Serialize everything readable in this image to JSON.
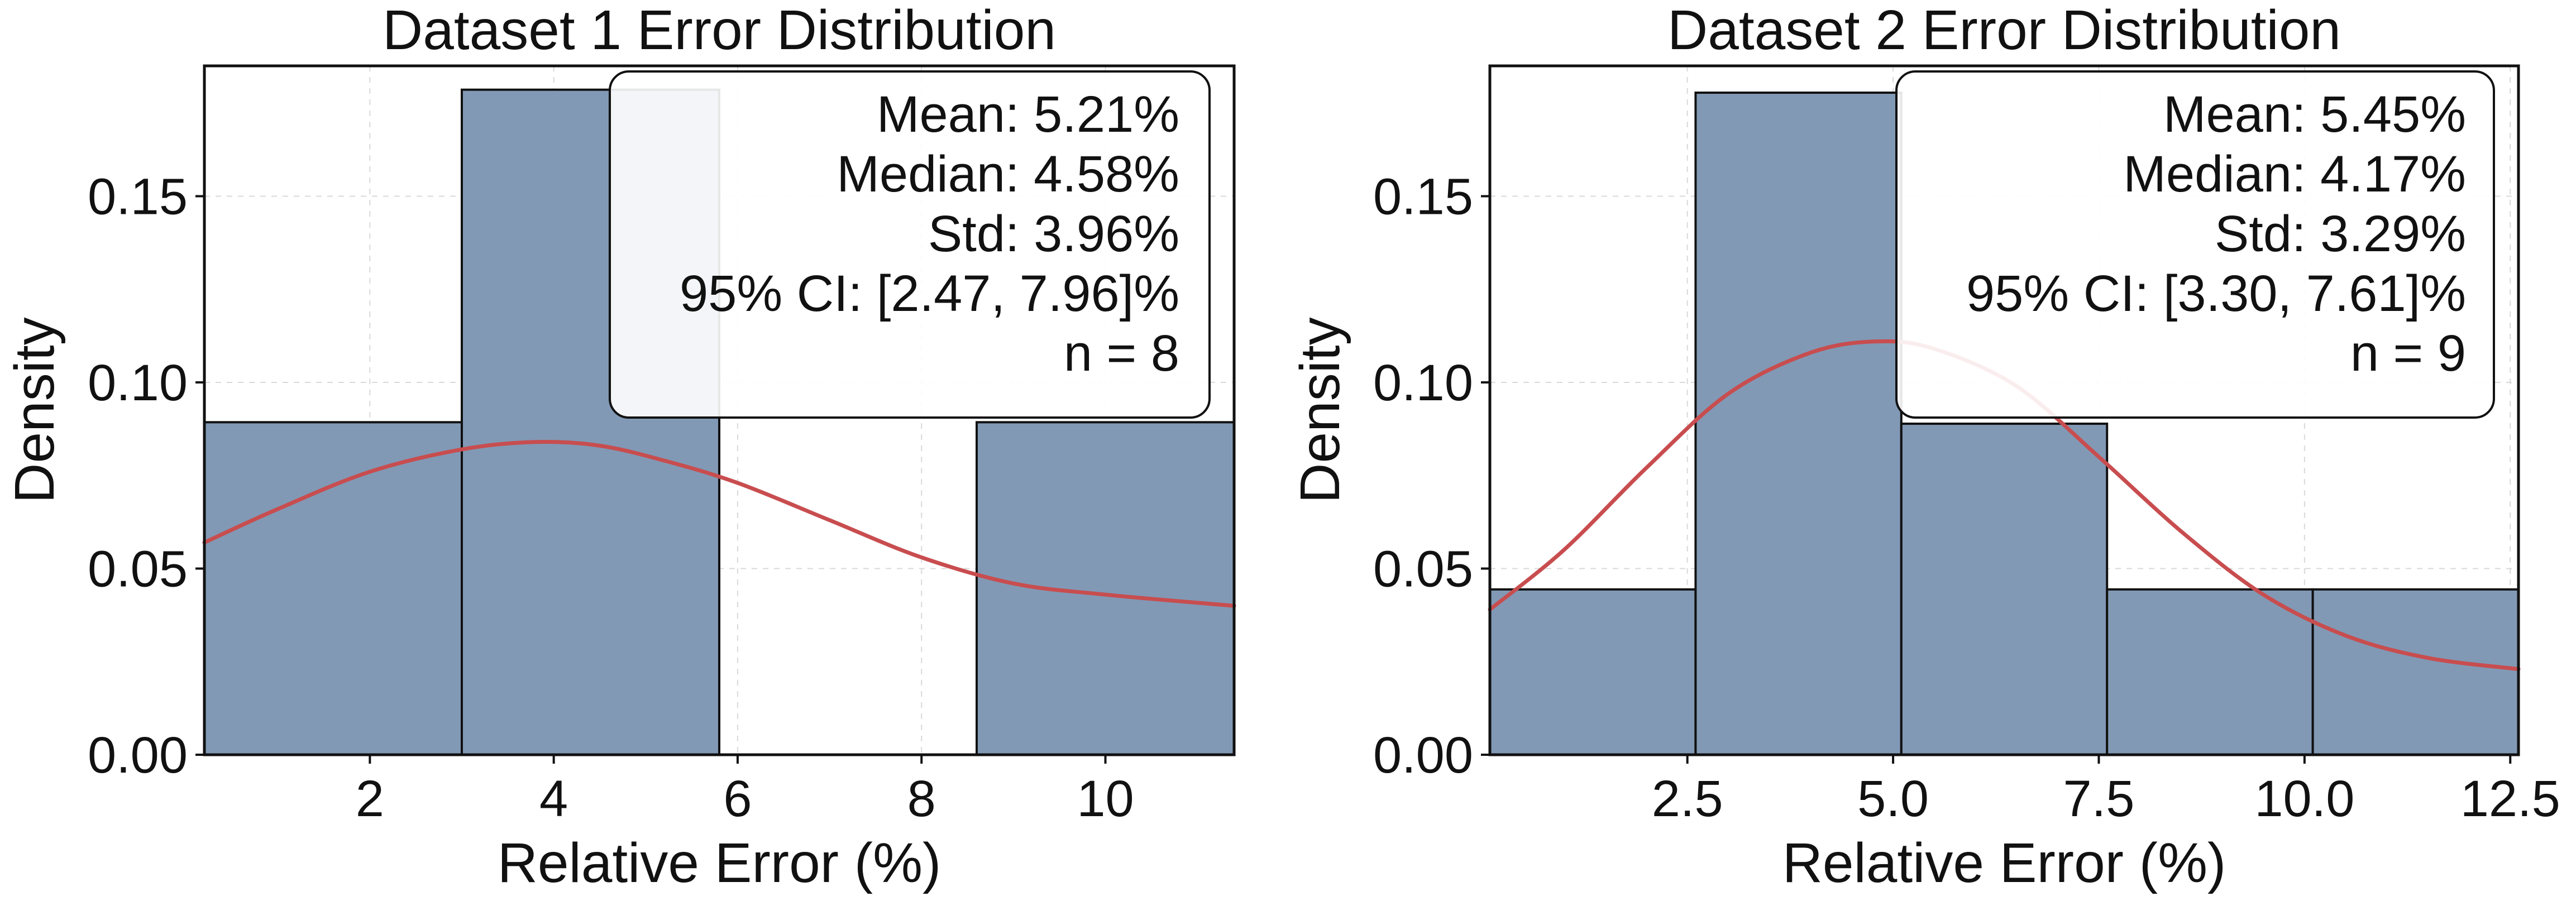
{
  "colors": {
    "bar_fill": "#8199b5",
    "kde_line": "#c84d4f",
    "frame": "#111111"
  },
  "chart_data": [
    {
      "type": "bar",
      "title": "Dataset 1 Error Distribution",
      "xlabel": "Relative Error (%)",
      "ylabel": "Density",
      "xlim": [
        0.2,
        11.4
      ],
      "ylim": [
        0,
        0.185
      ],
      "xticks": [
        2,
        4,
        6,
        8,
        10
      ],
      "xtick_labels": [
        "2",
        "4",
        "6",
        "8",
        "10"
      ],
      "yticks": [
        0,
        0.05,
        0.1,
        0.15
      ],
      "ytick_labels": [
        "0.00",
        "0.05",
        "0.10",
        "0.15"
      ],
      "grid": true,
      "bins": [
        {
          "x0": 0.2,
          "x1": 3.0,
          "density": 0.0893
        },
        {
          "x0": 3.0,
          "x1": 5.8,
          "density": 0.1786
        },
        {
          "x0": 5.8,
          "x1": 8.6,
          "density": 0.0
        },
        {
          "x0": 8.6,
          "x1": 11.4,
          "density": 0.0893
        }
      ],
      "kde": {
        "x": [
          0.2,
          1.0,
          2.0,
          3.0,
          3.8,
          4.5,
          5.2,
          6.0,
          7.0,
          8.0,
          9.0,
          10.0,
          11.4
        ],
        "y": [
          0.057,
          0.066,
          0.076,
          0.082,
          0.084,
          0.083,
          0.079,
          0.073,
          0.063,
          0.053,
          0.046,
          0.043,
          0.04
        ]
      },
      "stats_box": {
        "position": "top-right",
        "lines": [
          "Mean: 5.21%",
          "Median: 4.58%",
          "Std: 3.96%",
          "95% CI: [2.47, 7.96]%",
          "n = 8"
        ]
      }
    },
    {
      "type": "bar",
      "title": "Dataset 2 Error Distribution",
      "xlabel": "Relative Error (%)",
      "ylabel": "Density",
      "xlim": [
        0.1,
        12.6
      ],
      "ylim": [
        0,
        0.185
      ],
      "xticks": [
        2.5,
        5.0,
        7.5,
        10.0,
        12.5
      ],
      "xtick_labels": [
        "2.5",
        "5.0",
        "7.5",
        "10.0",
        "12.5"
      ],
      "yticks": [
        0,
        0.05,
        0.1,
        0.15
      ],
      "ytick_labels": [
        "0.00",
        "0.05",
        "0.10",
        "0.15"
      ],
      "grid": true,
      "bins": [
        {
          "x0": 0.1,
          "x1": 2.6,
          "density": 0.0444
        },
        {
          "x0": 2.6,
          "x1": 5.1,
          "density": 0.1778
        },
        {
          "x0": 5.1,
          "x1": 7.6,
          "density": 0.0889
        },
        {
          "x0": 7.6,
          "x1": 10.1,
          "density": 0.0444
        },
        {
          "x0": 10.1,
          "x1": 12.6,
          "density": 0.0444
        }
      ],
      "kde": {
        "x": [
          0.1,
          1.0,
          2.0,
          3.0,
          4.0,
          4.8,
          5.5,
          6.5,
          7.5,
          8.5,
          9.5,
          10.5,
          11.5,
          12.6
        ],
        "y": [
          0.039,
          0.055,
          0.077,
          0.097,
          0.108,
          0.111,
          0.109,
          0.099,
          0.08,
          0.06,
          0.043,
          0.032,
          0.026,
          0.023
        ]
      },
      "stats_box": {
        "position": "top-right",
        "lines": [
          "Mean: 5.45%",
          "Median: 4.17%",
          "Std: 3.29%",
          "95% CI: [3.30, 7.61]%",
          "n = 9"
        ]
      }
    }
  ]
}
